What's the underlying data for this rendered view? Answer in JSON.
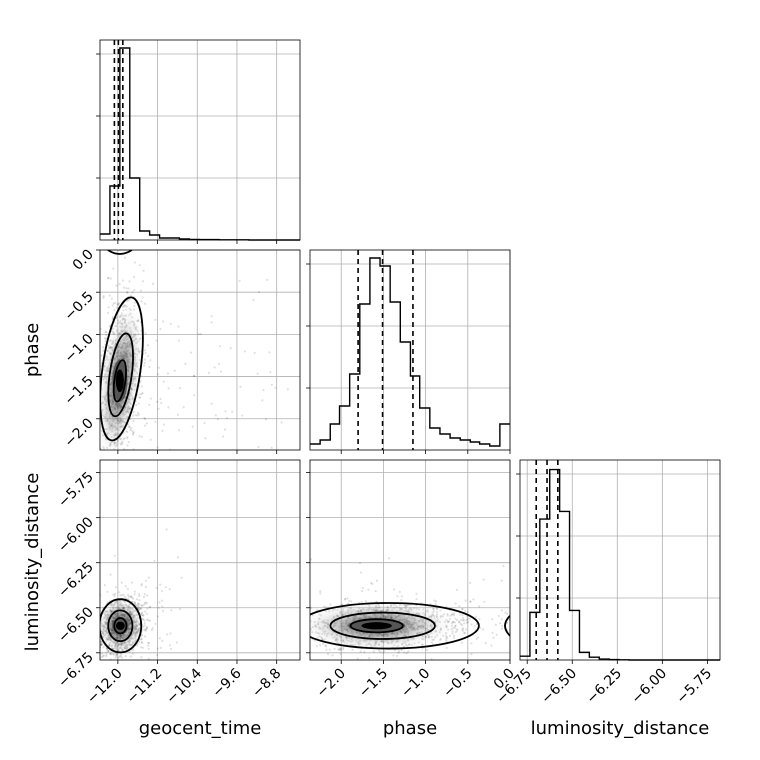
{
  "chart_data": {
    "type": "corner",
    "parameters": [
      "geocent_time",
      "phase",
      "luminosity_distance"
    ],
    "ticks": {
      "geocent_time": [
        -12.0,
        -11.2,
        -10.4,
        -9.6,
        -8.8
      ],
      "phase": [
        -2.0,
        -1.5,
        -1.0,
        -0.5,
        0.0
      ],
      "luminosity_distance": [
        -6.75,
        -6.5,
        -6.25,
        -6.0,
        -5.75
      ]
    },
    "tick_labels": {
      "geocent_time": [
        "−12.0",
        "−11.2",
        "−10.4",
        "−9.6",
        "−8.8"
      ],
      "phase": [
        "−2.0",
        "−1.5",
        "−1.0",
        "−0.5",
        "0.0"
      ],
      "luminosity_distance": [
        "−6.75",
        "−6.50",
        "−6.25",
        "−6.00",
        "−5.75"
      ]
    },
    "ranges": {
      "geocent_time": [
        -12.36,
        -8.33
      ],
      "phase": [
        -2.37,
        0.0
      ],
      "luminosity_distance": [
        -6.79,
        -5.68
      ]
    },
    "grid": true,
    "histograms": {
      "geocent_time": {
        "edges": [
          -12.36,
          -12.16,
          -11.96,
          -11.76,
          -11.56,
          -11.36,
          -11.16,
          -10.96,
          -10.76,
          -10.56,
          -10.36,
          -10.16,
          -9.96,
          -9.76,
          -9.56,
          -9.36,
          -9.16,
          -8.96,
          -8.76,
          -8.56,
          -8.33
        ],
        "counts": [
          0.03,
          0.27,
          0.96,
          0.31,
          0.045,
          0.025,
          0.01,
          0.01,
          0.005,
          0.003,
          0.002,
          0.002,
          0.001,
          0.001,
          0.001,
          0,
          0,
          0,
          0,
          0
        ],
        "ymax": 1.0,
        "quantiles": [
          -12.07,
          -11.99,
          -11.9
        ]
      },
      "phase": {
        "edges": [
          -2.37,
          -2.25,
          -2.13,
          -2.02,
          -1.9,
          -1.78,
          -1.66,
          -1.54,
          -1.42,
          -1.3,
          -1.18,
          -1.07,
          -0.95,
          -0.83,
          -0.71,
          -0.59,
          -0.47,
          -0.36,
          -0.24,
          -0.12,
          0.0
        ],
        "counts": [
          0.03,
          0.05,
          0.13,
          0.22,
          0.38,
          0.73,
          0.96,
          0.92,
          0.74,
          0.54,
          0.37,
          0.21,
          0.11,
          0.08,
          0.06,
          0.05,
          0.04,
          0.03,
          0.02,
          0.13
        ],
        "ymax": 1.0,
        "quantiles": [
          -1.8,
          -1.51,
          -1.15
        ]
      },
      "luminosity_distance": {
        "edges": [
          -6.79,
          -6.735,
          -6.68,
          -6.625,
          -6.57,
          -6.515,
          -6.46,
          -6.405,
          -6.35,
          -6.295,
          -6.24,
          -6.185,
          -6.13,
          -6.075,
          -6.02,
          -5.965,
          -5.91,
          -5.855,
          -5.8,
          -5.745,
          -5.68
        ],
        "counts": [
          0.02,
          0.25,
          0.74,
          1.0,
          0.78,
          0.26,
          0.04,
          0.015,
          0.005,
          0.002,
          0.001,
          0,
          0,
          0,
          0,
          0,
          0,
          0,
          0,
          0
        ],
        "ymax": 1.05,
        "quantiles": [
          -6.7,
          -6.64,
          -6.58
        ]
      }
    },
    "posterior_peaks": [
      {
        "x": "geocent_time",
        "y": "phase",
        "x_center": -11.96,
        "y_center": -1.55
      },
      {
        "x": "geocent_time",
        "y": "luminosity_distance",
        "x_center": -11.95,
        "y_center": -6.6
      },
      {
        "x": "phase",
        "y": "luminosity_distance",
        "x_center": -1.58,
        "y_center": -6.6
      }
    ]
  }
}
